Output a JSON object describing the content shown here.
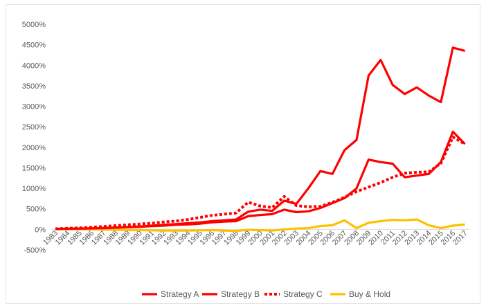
{
  "chart_data": {
    "type": "line",
    "title": "",
    "xlabel": "",
    "ylabel": "",
    "ylim": [
      -500,
      5000
    ],
    "y_ticks": [
      -500,
      0,
      500,
      1000,
      1500,
      2000,
      2500,
      3000,
      3500,
      4000,
      4500,
      5000
    ],
    "y_tick_labels": [
      "-500%",
      "0%",
      "500%",
      "1000%",
      "1500%",
      "2000%",
      "2500%",
      "3000%",
      "3500%",
      "4000%",
      "4500%",
      "5000%"
    ],
    "grid": false,
    "legend_position": "bottom",
    "x": [
      "1983",
      "1984",
      "1985",
      "1986",
      "1987",
      "1988",
      "1989",
      "1990",
      "1991",
      "1992",
      "1993",
      "1994",
      "1995",
      "1996",
      "1997",
      "1998",
      "1999",
      "2000",
      "2001",
      "2002",
      "2003",
      "2004",
      "2005",
      "2006",
      "2007",
      "2008",
      "2009",
      "2010",
      "2011",
      "2012",
      "2013",
      "2014",
      "2015",
      "2016",
      "2017"
    ],
    "series": [
      {
        "name": "Strategy A",
        "color": "#ff0000",
        "dash": "solid",
        "values": [
          10,
          15,
          20,
          25,
          35,
          45,
          55,
          70,
          90,
          110,
          130,
          150,
          170,
          200,
          220,
          240,
          430,
          480,
          450,
          700,
          620,
          1000,
          1420,
          1350,
          1930,
          2180,
          3750,
          4130,
          3520,
          3300,
          3460,
          3260,
          3100,
          4430,
          4350
        ]
      },
      {
        "name": "Strategy B",
        "color": "#ff0000",
        "dash": "solid",
        "values": [
          10,
          15,
          20,
          25,
          30,
          40,
          50,
          60,
          80,
          90,
          110,
          120,
          140,
          170,
          190,
          200,
          320,
          350,
          370,
          480,
          420,
          440,
          520,
          640,
          760,
          1000,
          1700,
          1640,
          1600,
          1270,
          1310,
          1350,
          1640,
          2380,
          2080
        ]
      },
      {
        "name": "Strategy C",
        "color": "#ff0000",
        "dash": "dotted",
        "values": [
          15,
          25,
          35,
          50,
          70,
          90,
          110,
          130,
          150,
          180,
          200,
          240,
          290,
          340,
          370,
          400,
          660,
          570,
          530,
          800,
          580,
          550,
          560,
          660,
          780,
          920,
          1030,
          1140,
          1270,
          1370,
          1390,
          1400,
          1610,
          2250,
          2080
        ]
      },
      {
        "name": "Buy & Hold",
        "color": "#ffc000",
        "dash": "solid",
        "values": [
          5,
          5,
          5,
          0,
          -5,
          -10,
          -20,
          -20,
          -25,
          -30,
          -30,
          -30,
          -25,
          -20,
          -30,
          -40,
          -10,
          -20,
          -30,
          0,
          20,
          30,
          80,
          100,
          220,
          30,
          160,
          200,
          230,
          220,
          240,
          100,
          30,
          90,
          120
        ]
      }
    ]
  }
}
